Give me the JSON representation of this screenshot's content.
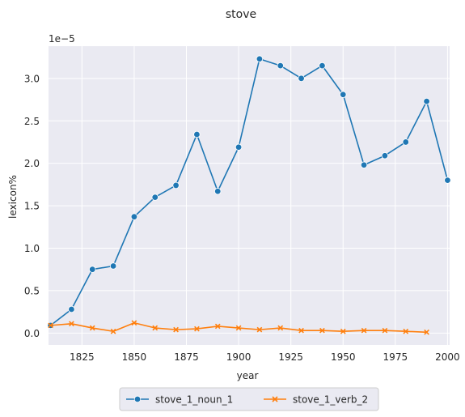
{
  "chart_data": {
    "type": "line",
    "title": "stove",
    "xlabel": "year",
    "ylabel": "lexicon%",
    "y_offset_label": "1e−5",
    "xlim": [
      1809,
      2001
    ],
    "ylim": [
      -0.14,
      3.38
    ],
    "x_ticks": [
      1825,
      1850,
      1875,
      1900,
      1925,
      1950,
      1975,
      2000
    ],
    "y_ticks": [
      0.0,
      0.5,
      1.0,
      1.5,
      2.0,
      2.5,
      3.0
    ],
    "y_tick_labels": [
      "0.0",
      "0.5",
      "1.0",
      "1.5",
      "2.0",
      "2.5",
      "3.0"
    ],
    "grid": true,
    "legend_position": "bottom-center-outside",
    "series": [
      {
        "name": "stove_1_noun_1",
        "color": "#1f77b4",
        "marker": "circle",
        "x": [
          1810,
          1820,
          1830,
          1840,
          1850,
          1860,
          1870,
          1880,
          1890,
          1900,
          1910,
          1920,
          1930,
          1940,
          1950,
          1960,
          1970,
          1980,
          1990,
          2000
        ],
        "y": [
          0.09,
          0.28,
          0.75,
          0.79,
          1.37,
          1.6,
          1.74,
          2.34,
          1.67,
          2.19,
          3.23,
          3.15,
          3.0,
          3.15,
          2.81,
          1.98,
          2.09,
          2.25,
          2.73,
          1.8
        ]
      },
      {
        "name": "stove_1_verb_2",
        "color": "#ff7f0e",
        "marker": "x",
        "x": [
          1810,
          1820,
          1830,
          1840,
          1850,
          1860,
          1870,
          1880,
          1890,
          1900,
          1910,
          1920,
          1930,
          1940,
          1950,
          1960,
          1970,
          1980,
          1990
        ],
        "y": [
          0.09,
          0.11,
          0.06,
          0.02,
          0.12,
          0.06,
          0.04,
          0.05,
          0.08,
          0.06,
          0.04,
          0.06,
          0.03,
          0.03,
          0.02,
          0.03,
          0.03,
          0.02,
          0.01
        ]
      }
    ]
  }
}
